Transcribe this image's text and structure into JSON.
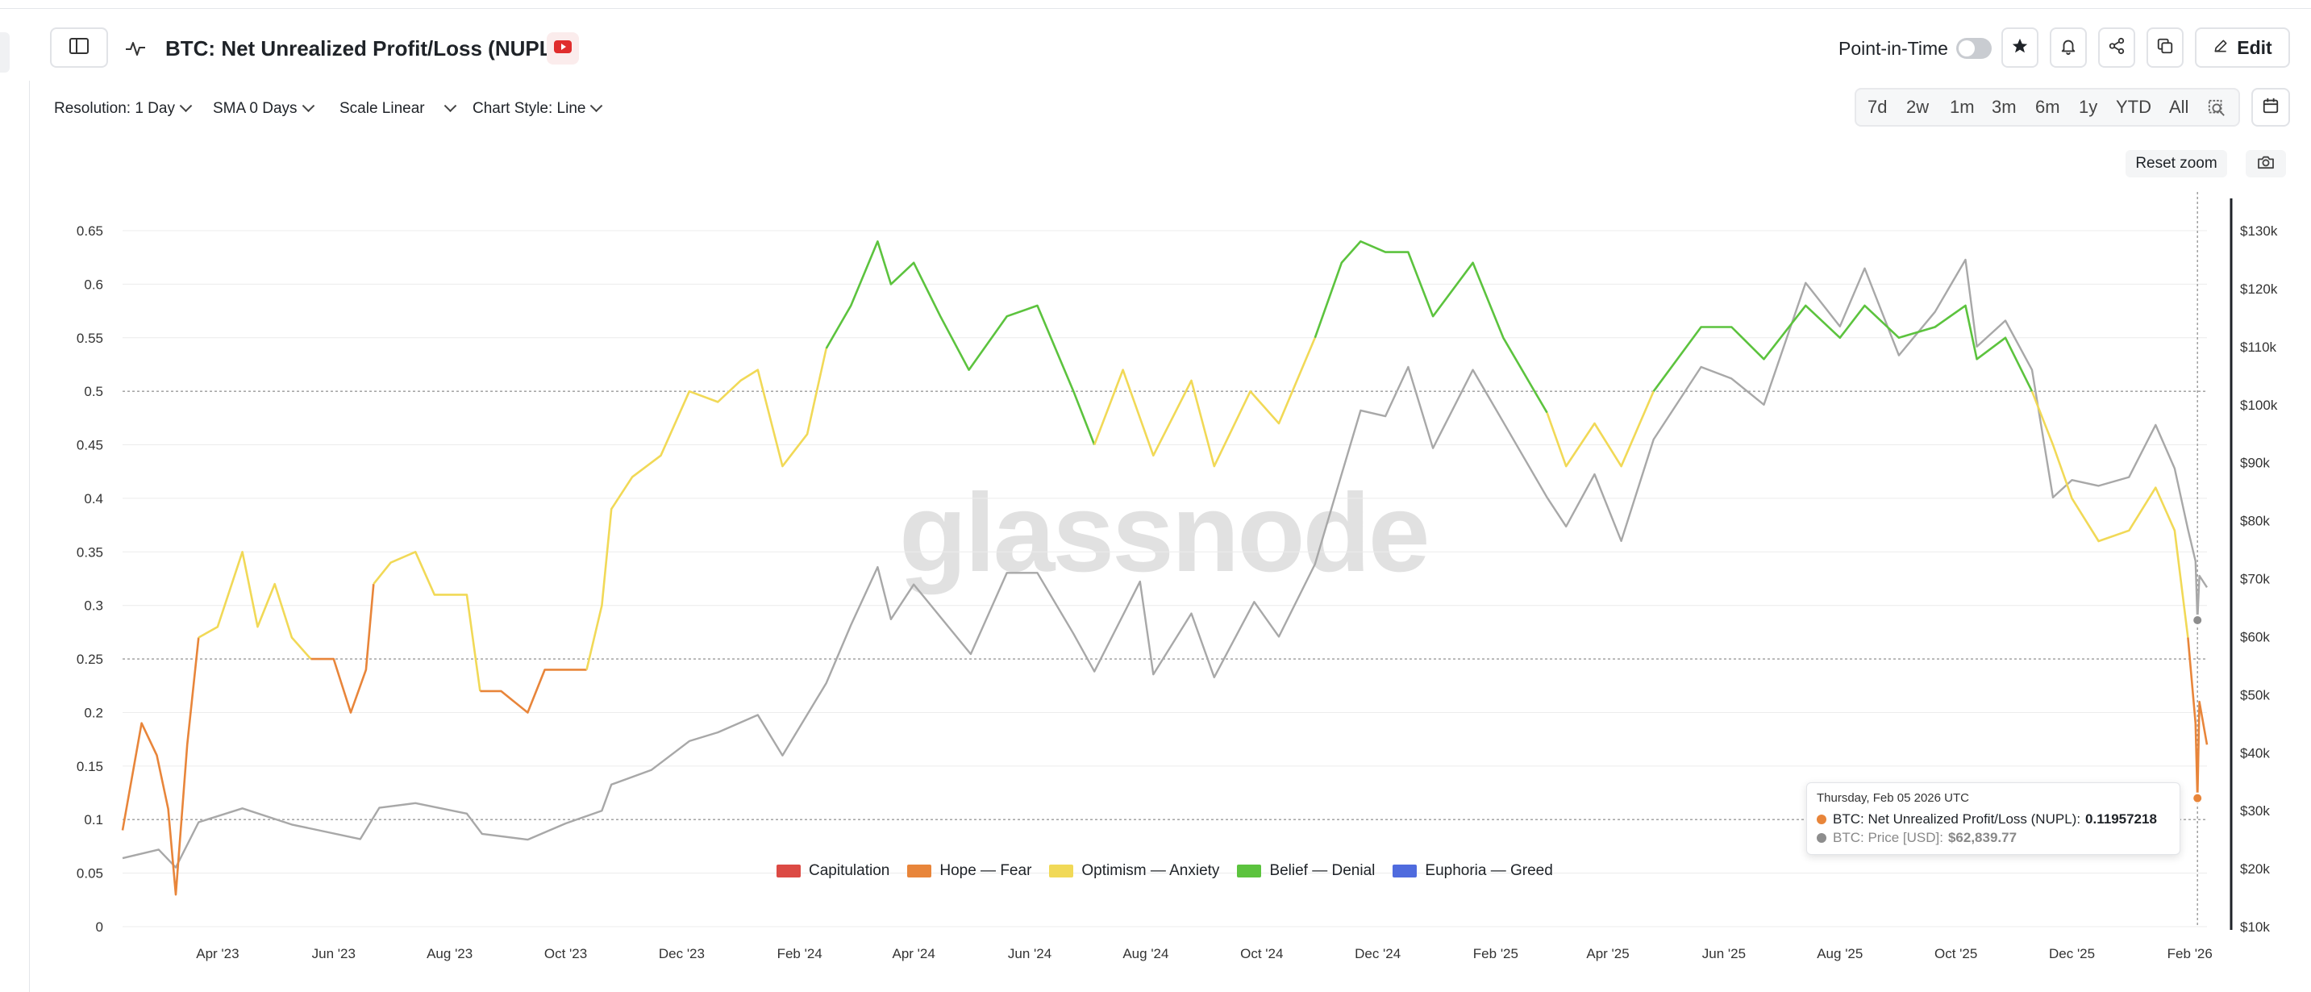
{
  "header": {
    "title": "BTC: Net Unrealized Profit/Loss (NUPL)",
    "point_in_time_label": "Point-in-Time",
    "edit_label": "Edit"
  },
  "toolbar": {
    "resolution_label": "Resolution: 1 Day",
    "sma_label": "SMA 0 Days",
    "scale_label": "Scale Linear",
    "chart_style_label": "Chart Style: Line"
  },
  "ranges": [
    "7d",
    "2w",
    "1m",
    "3m",
    "6m",
    "1y",
    "YTD",
    "All"
  ],
  "reset_zoom_label": "Reset zoom",
  "watermark": "glassnode",
  "colors": {
    "capitulation": "#dc4a44",
    "hope_fear": "#e8853a",
    "optimism_anxiety": "#f1d957",
    "belief_denial": "#5cc33e",
    "euphoria_greed": "#4f6bde",
    "price": "#a8a8a8"
  },
  "tooltip": {
    "date": "Thursday, Feb 05 2026 UTC",
    "nupl_label": "BTC: Net Unrealized Profit/Loss (NUPL):",
    "nupl_value": "0.11957218",
    "price_label": "BTC: Price [USD]:",
    "price_value": "$62,839.77"
  },
  "chart_data": {
    "type": "line",
    "title": "BTC: Net Unrealized Profit/Loss (NUPL)",
    "xlabel": "",
    "ylabel": "",
    "x_ticks": [
      "Apr '23",
      "Jun '23",
      "Aug '23",
      "Oct '23",
      "Dec '23",
      "Feb '24",
      "Apr '24",
      "Jun '24",
      "Aug '24",
      "Oct '24",
      "Dec '24",
      "Feb '25",
      "Apr '25",
      "Jun '25",
      "Aug '25",
      "Oct '25",
      "Dec '25",
      "Feb '26"
    ],
    "y_left_ticks": [
      "0",
      "0.05",
      "0.1",
      "0.15",
      "0.2",
      "0.25",
      "0.3",
      "0.35",
      "0.4",
      "0.45",
      "0.5",
      "0.55",
      "0.6",
      "0.65"
    ],
    "y_right_ticks": [
      "$10k",
      "$20k",
      "$30k",
      "$40k",
      "$50k",
      "$60k",
      "$70k",
      "$80k",
      "$90k",
      "$100k",
      "$110k",
      "$120k",
      "$130k"
    ],
    "y_left_range": [
      0,
      0.65
    ],
    "y_right_range": [
      10000,
      130000
    ],
    "x_range": [
      "2023-02-10",
      "2026-02-10"
    ],
    "grid": true,
    "dotted_reference_lines": [
      0.1,
      0.25,
      0.5
    ],
    "legend_position": "bottom-center",
    "legend": [
      "Capitulation",
      "Hope — Fear",
      "Optimism — Anxiety",
      "Belief — Denial",
      "Euphoria — Greed"
    ],
    "series": [
      {
        "name": "BTC: Net Unrealized Profit/Loss (NUPL)",
        "axis": "left",
        "points": [
          [
            "2023-02-10",
            0.09
          ],
          [
            "2023-02-20",
            0.19
          ],
          [
            "2023-02-28",
            0.16
          ],
          [
            "2023-03-06",
            0.11
          ],
          [
            "2023-03-10",
            0.03
          ],
          [
            "2023-03-16",
            0.17
          ],
          [
            "2023-03-22",
            0.27
          ],
          [
            "2023-04-01",
            0.28
          ],
          [
            "2023-04-14",
            0.35
          ],
          [
            "2023-04-22",
            0.28
          ],
          [
            "2023-05-01",
            0.32
          ],
          [
            "2023-05-10",
            0.27
          ],
          [
            "2023-05-20",
            0.25
          ],
          [
            "2023-06-01",
            0.25
          ],
          [
            "2023-06-10",
            0.2
          ],
          [
            "2023-06-18",
            0.24
          ],
          [
            "2023-06-22",
            0.32
          ],
          [
            "2023-07-01",
            0.34
          ],
          [
            "2023-07-14",
            0.35
          ],
          [
            "2023-07-24",
            0.31
          ],
          [
            "2023-08-10",
            0.31
          ],
          [
            "2023-08-17",
            0.22
          ],
          [
            "2023-08-28",
            0.22
          ],
          [
            "2023-09-11",
            0.2
          ],
          [
            "2023-09-20",
            0.24
          ],
          [
            "2023-10-01",
            0.24
          ],
          [
            "2023-10-12",
            0.24
          ],
          [
            "2023-10-20",
            0.3
          ],
          [
            "2023-10-25",
            0.39
          ],
          [
            "2023-11-05",
            0.42
          ],
          [
            "2023-11-20",
            0.44
          ],
          [
            "2023-12-05",
            0.5
          ],
          [
            "2023-12-20",
            0.49
          ],
          [
            "2024-01-01",
            0.51
          ],
          [
            "2024-01-10",
            0.52
          ],
          [
            "2024-01-23",
            0.43
          ],
          [
            "2024-02-05",
            0.46
          ],
          [
            "2024-02-15",
            0.54
          ],
          [
            "2024-02-28",
            0.58
          ],
          [
            "2024-03-13",
            0.64
          ],
          [
            "2024-03-20",
            0.6
          ],
          [
            "2024-04-01",
            0.62
          ],
          [
            "2024-04-15",
            0.57
          ],
          [
            "2024-04-30",
            0.52
          ],
          [
            "2024-05-20",
            0.57
          ],
          [
            "2024-06-05",
            0.58
          ],
          [
            "2024-06-24",
            0.5
          ],
          [
            "2024-07-05",
            0.45
          ],
          [
            "2024-07-20",
            0.52
          ],
          [
            "2024-08-05",
            0.44
          ],
          [
            "2024-08-25",
            0.51
          ],
          [
            "2024-09-06",
            0.43
          ],
          [
            "2024-09-25",
            0.5
          ],
          [
            "2024-10-10",
            0.47
          ],
          [
            "2024-10-29",
            0.55
          ],
          [
            "2024-11-12",
            0.62
          ],
          [
            "2024-11-22",
            0.64
          ],
          [
            "2024-12-05",
            0.63
          ],
          [
            "2024-12-17",
            0.63
          ],
          [
            "2024-12-30",
            0.57
          ],
          [
            "2025-01-20",
            0.62
          ],
          [
            "2025-02-05",
            0.55
          ],
          [
            "2025-02-28",
            0.48
          ],
          [
            "2025-03-10",
            0.43
          ],
          [
            "2025-03-25",
            0.47
          ],
          [
            "2025-04-08",
            0.43
          ],
          [
            "2025-04-25",
            0.5
          ],
          [
            "2025-05-20",
            0.56
          ],
          [
            "2025-06-05",
            0.56
          ],
          [
            "2025-06-22",
            0.53
          ],
          [
            "2025-07-14",
            0.58
          ],
          [
            "2025-08-01",
            0.55
          ],
          [
            "2025-08-14",
            0.58
          ],
          [
            "2025-09-01",
            0.55
          ],
          [
            "2025-09-20",
            0.56
          ],
          [
            "2025-10-06",
            0.58
          ],
          [
            "2025-10-12",
            0.53
          ],
          [
            "2025-10-27",
            0.55
          ],
          [
            "2025-11-10",
            0.5
          ],
          [
            "2025-11-21",
            0.45
          ],
          [
            "2025-12-01",
            0.4
          ],
          [
            "2025-12-15",
            0.36
          ],
          [
            "2025-12-31",
            0.37
          ],
          [
            "2026-01-14",
            0.41
          ],
          [
            "2026-01-24",
            0.37
          ],
          [
            "2026-01-31",
            0.27
          ],
          [
            "2026-02-04",
            0.19
          ],
          [
            "2026-02-05",
            0.12
          ],
          [
            "2026-02-06",
            0.21
          ],
          [
            "2026-02-10",
            0.17
          ]
        ],
        "zones": [
          {
            "start": "2023-02-10",
            "end": "2023-03-22",
            "zone": "Hope — Fear"
          },
          {
            "start": "2023-03-22",
            "end": "2023-05-20",
            "zone": "Optimism — Anxiety"
          },
          {
            "start": "2023-05-20",
            "end": "2023-06-22",
            "zone": "Hope — Fear"
          },
          {
            "start": "2023-06-22",
            "end": "2023-08-17",
            "zone": "Optimism — Anxiety"
          },
          {
            "start": "2023-08-17",
            "end": "2023-10-12",
            "zone": "Hope — Fear"
          },
          {
            "start": "2023-10-12",
            "end": "2024-02-15",
            "zone": "Optimism — Anxiety"
          },
          {
            "start": "2024-02-15",
            "end": "2024-07-05",
            "zone": "Belief — Denial"
          },
          {
            "start": "2024-07-05",
            "end": "2024-10-29",
            "zone": "Optimism — Anxiety"
          },
          {
            "start": "2024-10-29",
            "end": "2025-02-28",
            "zone": "Belief — Denial"
          },
          {
            "start": "2025-02-28",
            "end": "2025-04-25",
            "zone": "Optimism — Anxiety"
          },
          {
            "start": "2025-04-25",
            "end": "2025-11-10",
            "zone": "Belief — Denial"
          },
          {
            "start": "2025-11-10",
            "end": "2026-01-31",
            "zone": "Optimism — Anxiety"
          },
          {
            "start": "2026-01-31",
            "end": "2026-02-10",
            "zone": "Hope — Fear"
          }
        ]
      },
      {
        "name": "BTC: Price [USD]",
        "axis": "right",
        "points": [
          [
            "2023-02-10",
            21800
          ],
          [
            "2023-03-01",
            23300
          ],
          [
            "2023-03-10",
            20200
          ],
          [
            "2023-03-22",
            28000
          ],
          [
            "2023-04-14",
            30400
          ],
          [
            "2023-05-10",
            27600
          ],
          [
            "2023-06-15",
            25100
          ],
          [
            "2023-06-25",
            30500
          ],
          [
            "2023-07-14",
            31300
          ],
          [
            "2023-08-10",
            29500
          ],
          [
            "2023-08-18",
            26000
          ],
          [
            "2023-09-11",
            25000
          ],
          [
            "2023-10-01",
            27800
          ],
          [
            "2023-10-20",
            30000
          ],
          [
            "2023-10-25",
            34500
          ],
          [
            "2023-11-15",
            37000
          ],
          [
            "2023-12-05",
            42000
          ],
          [
            "2023-12-20",
            43500
          ],
          [
            "2024-01-10",
            46500
          ],
          [
            "2024-01-23",
            39500
          ],
          [
            "2024-02-15",
            52000
          ],
          [
            "2024-02-28",
            62000
          ],
          [
            "2024-03-13",
            72000
          ],
          [
            "2024-03-20",
            63000
          ],
          [
            "2024-04-01",
            69000
          ],
          [
            "2024-05-01",
            57000
          ],
          [
            "2024-05-20",
            71000
          ],
          [
            "2024-06-05",
            71000
          ],
          [
            "2024-06-24",
            60500
          ],
          [
            "2024-07-05",
            54000
          ],
          [
            "2024-07-29",
            69500
          ],
          [
            "2024-08-05",
            53500
          ],
          [
            "2024-08-25",
            64000
          ],
          [
            "2024-09-06",
            53000
          ],
          [
            "2024-09-27",
            66000
          ],
          [
            "2024-10-10",
            60000
          ],
          [
            "2024-10-29",
            72500
          ],
          [
            "2024-11-12",
            88000
          ],
          [
            "2024-11-22",
            99000
          ],
          [
            "2024-12-05",
            98000
          ],
          [
            "2024-12-17",
            106500
          ],
          [
            "2024-12-30",
            92500
          ],
          [
            "2025-01-20",
            106000
          ],
          [
            "2025-02-05",
            97000
          ],
          [
            "2025-02-28",
            84000
          ],
          [
            "2025-03-10",
            79000
          ],
          [
            "2025-03-25",
            88000
          ],
          [
            "2025-04-08",
            76500
          ],
          [
            "2025-04-25",
            94000
          ],
          [
            "2025-05-20",
            106500
          ],
          [
            "2025-06-05",
            104500
          ],
          [
            "2025-06-22",
            100000
          ],
          [
            "2025-07-14",
            121000
          ],
          [
            "2025-08-01",
            113500
          ],
          [
            "2025-08-14",
            123500
          ],
          [
            "2025-09-01",
            108500
          ],
          [
            "2025-09-20",
            116000
          ],
          [
            "2025-10-06",
            125000
          ],
          [
            "2025-10-12",
            110000
          ],
          [
            "2025-10-27",
            114500
          ],
          [
            "2025-11-10",
            106000
          ],
          [
            "2025-11-21",
            84000
          ],
          [
            "2025-12-01",
            87000
          ],
          [
            "2025-12-15",
            86000
          ],
          [
            "2025-12-31",
            87500
          ],
          [
            "2026-01-14",
            96500
          ],
          [
            "2026-01-24",
            89000
          ],
          [
            "2026-01-31",
            78500
          ],
          [
            "2026-02-04",
            73000
          ],
          [
            "2026-02-05",
            62840
          ],
          [
            "2026-02-06",
            70500
          ],
          [
            "2026-02-10",
            68500
          ]
        ]
      }
    ]
  }
}
